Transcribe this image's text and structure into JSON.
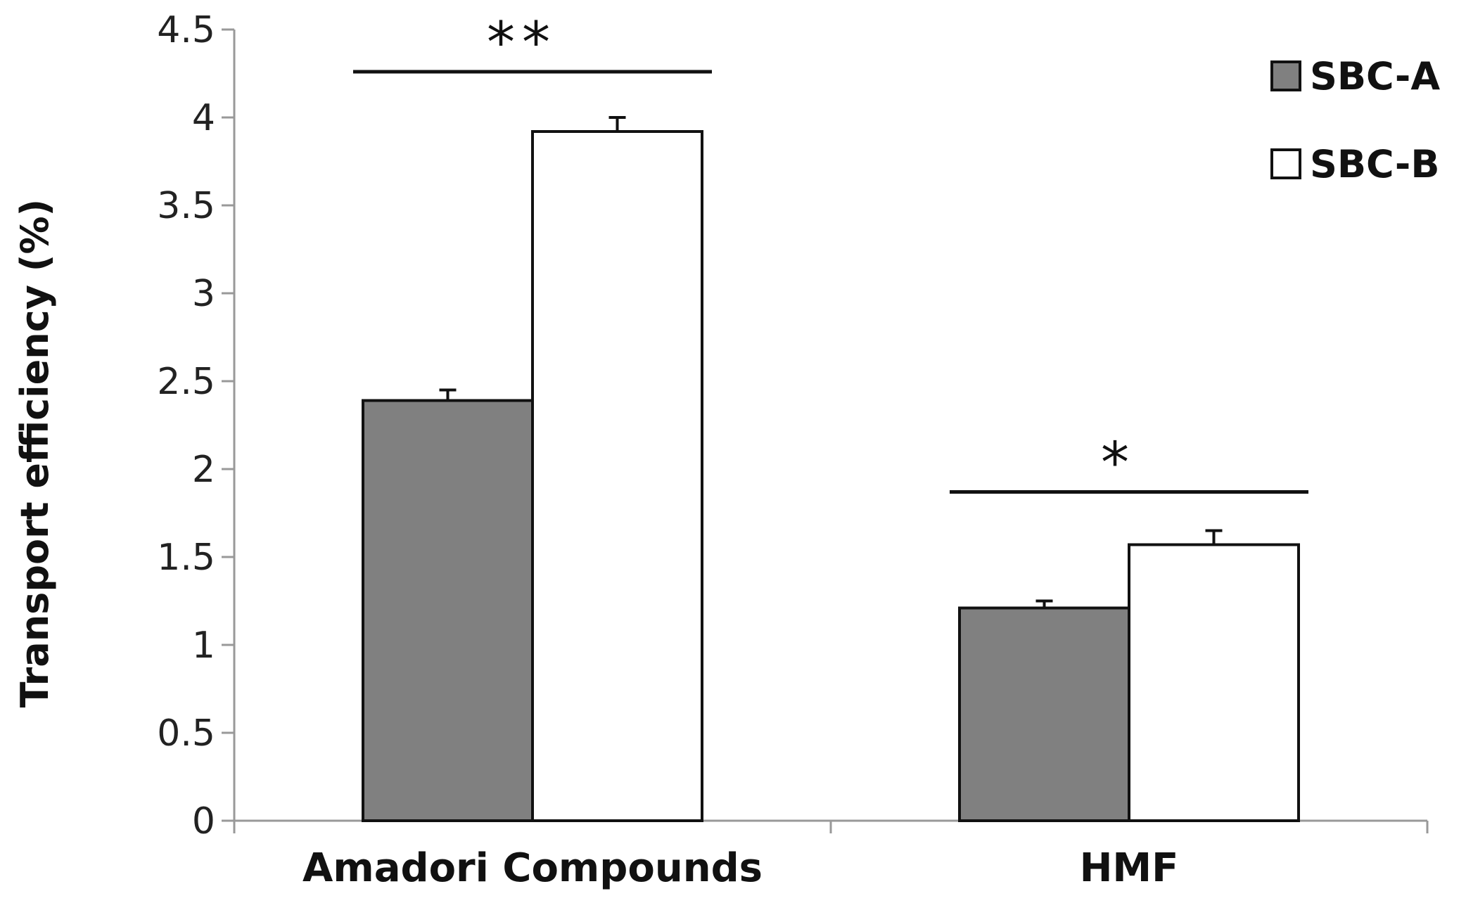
{
  "chart_data": {
    "type": "bar",
    "categories": [
      "Amadori Compounds",
      "HMF"
    ],
    "series": [
      {
        "name": "SBC-A",
        "values": [
          2.39,
          1.21
        ],
        "errors": [
          0.06,
          0.04
        ],
        "color": "#808080"
      },
      {
        "name": "SBC-B",
        "values": [
          3.92,
          1.57
        ],
        "errors": [
          0.08,
          0.08
        ],
        "color": "#ffffff"
      }
    ],
    "xlabel": "",
    "ylabel": "Transport efficiency (%)",
    "ylim": [
      0,
      4.5
    ],
    "yticks": [
      "0",
      "0.5",
      "1",
      "1.5",
      "2",
      "2.5",
      "3",
      "3.5",
      "4",
      "4.5"
    ],
    "grid": false,
    "legend_position": "top-right",
    "significance": [
      {
        "category": "Amadori Compounds",
        "label": "**",
        "level": 4.26
      },
      {
        "category": "HMF",
        "label": "*",
        "level": 1.87
      }
    ],
    "bar_edge_color": "#111111",
    "axis_color": "#999999"
  }
}
